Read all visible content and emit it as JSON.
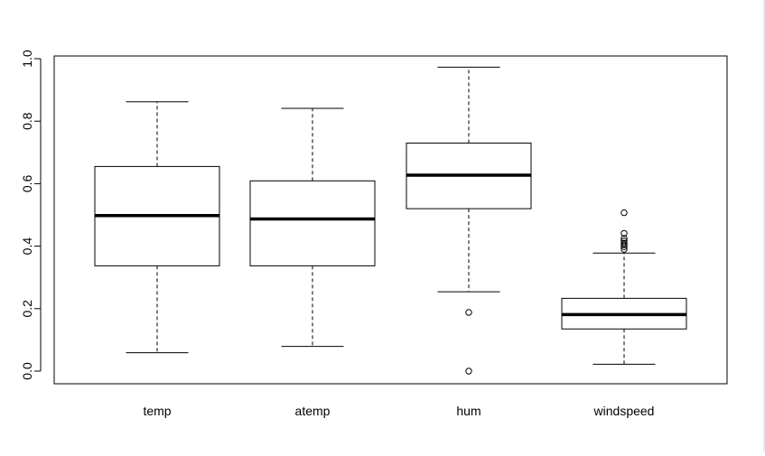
{
  "chart_data": {
    "type": "boxplot",
    "title": "",
    "xlabel": "",
    "ylabel": "",
    "ylim": [
      0,
      1
    ],
    "y_ticks": [
      0.0,
      0.2,
      0.4,
      0.6,
      0.8,
      1.0
    ],
    "y_tick_labels": [
      "0.0",
      "0.2",
      "0.4",
      "0.6",
      "0.8",
      "1.0"
    ],
    "grid": false,
    "legend": "none",
    "categories": [
      "temp",
      "atemp",
      "hum",
      "windspeed"
    ],
    "boxes": [
      {
        "name": "temp",
        "whisker_low": 0.059,
        "q1": 0.337,
        "median": 0.498,
        "q3": 0.655,
        "whisker_high": 0.862,
        "outliers": []
      },
      {
        "name": "atemp",
        "whisker_low": 0.079,
        "q1": 0.337,
        "median": 0.487,
        "q3": 0.609,
        "whisker_high": 0.841,
        "outliers": []
      },
      {
        "name": "hum",
        "whisker_low": 0.254,
        "q1": 0.52,
        "median": 0.627,
        "q3": 0.73,
        "whisker_high": 0.973,
        "outliers": [
          0.188,
          0.0
        ]
      },
      {
        "name": "windspeed",
        "whisker_low": 0.022,
        "q1": 0.135,
        "median": 0.181,
        "q3": 0.233,
        "whisker_high": 0.378,
        "outliers": [
          0.507,
          0.441,
          0.425,
          0.417,
          0.41,
          0.404,
          0.398,
          0.39
        ]
      }
    ]
  }
}
